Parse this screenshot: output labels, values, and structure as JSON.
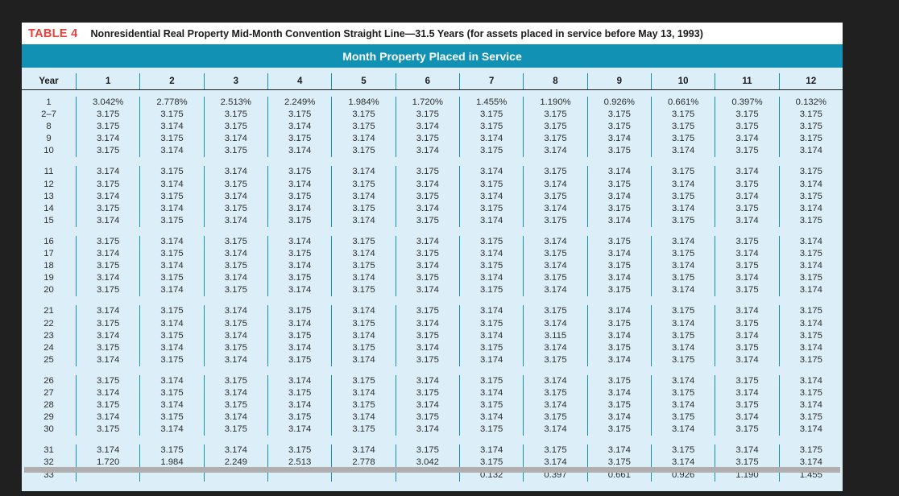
{
  "colors": {
    "label_red": "#e8403a",
    "band_teal": "#1192b4",
    "body_blue": "#dceef7",
    "page_background": "#202020"
  },
  "table": {
    "label": "TABLE 4",
    "title": "Nonresidential Real Property Mid-Month Convention Straight Line—31.5 Years (for assets placed in service before May 13, 1993)",
    "band_header": "Month Property Placed in Service",
    "year_header": "Year",
    "month_headers": [
      "1",
      "2",
      "3",
      "4",
      "5",
      "6",
      "7",
      "8",
      "9",
      "10",
      "11",
      "12"
    ],
    "groups": [
      {
        "rows": [
          {
            "year": "1",
            "values": [
              "3.042%",
              "2.778%",
              "2.513%",
              "2.249%",
              "1.984%",
              "1.720%",
              "1.455%",
              "1.190%",
              "0.926%",
              "0.661%",
              "0.397%",
              "0.132%"
            ]
          },
          {
            "year": "2–7",
            "values": [
              "3.175",
              "3.175",
              "3.175",
              "3.175",
              "3.175",
              "3.175",
              "3.175",
              "3.175",
              "3.175",
              "3.175",
              "3.175",
              "3.175"
            ]
          },
          {
            "year": "8",
            "values": [
              "3.175",
              "3.174",
              "3.175",
              "3.174",
              "3.175",
              "3.174",
              "3.175",
              "3.175",
              "3.175",
              "3.175",
              "3.175",
              "3.175"
            ]
          },
          {
            "year": "9",
            "values": [
              "3.174",
              "3.175",
              "3.174",
              "3.175",
              "3.174",
              "3.175",
              "3.174",
              "3.175",
              "3.174",
              "3.175",
              "3.174",
              "3.175"
            ]
          },
          {
            "year": "10",
            "values": [
              "3.175",
              "3.174",
              "3.175",
              "3.174",
              "3.175",
              "3.174",
              "3.175",
              "3.174",
              "3.175",
              "3.174",
              "3.175",
              "3.174"
            ]
          }
        ]
      },
      {
        "rows": [
          {
            "year": "11",
            "values": [
              "3.174",
              "3.175",
              "3.174",
              "3.175",
              "3.174",
              "3.175",
              "3.174",
              "3.175",
              "3.174",
              "3.175",
              "3.174",
              "3.175"
            ]
          },
          {
            "year": "12",
            "values": [
              "3.175",
              "3.174",
              "3.175",
              "3.174",
              "3.175",
              "3.174",
              "3.175",
              "3.174",
              "3.175",
              "3.174",
              "3.175",
              "3.174"
            ]
          },
          {
            "year": "13",
            "values": [
              "3.174",
              "3.175",
              "3.174",
              "3.175",
              "3.174",
              "3.175",
              "3.174",
              "3.175",
              "3.174",
              "3.175",
              "3.174",
              "3.175"
            ]
          },
          {
            "year": "14",
            "values": [
              "3.175",
              "3.174",
              "3.175",
              "3.174",
              "3.175",
              "3.174",
              "3.175",
              "3.174",
              "3.175",
              "3.174",
              "3.175",
              "3.174"
            ]
          },
          {
            "year": "15",
            "values": [
              "3.174",
              "3.175",
              "3.174",
              "3.175",
              "3.174",
              "3.175",
              "3.174",
              "3.175",
              "3.174",
              "3.175",
              "3.174",
              "3.175"
            ]
          }
        ]
      },
      {
        "rows": [
          {
            "year": "16",
            "values": [
              "3.175",
              "3.174",
              "3.175",
              "3.174",
              "3.175",
              "3.174",
              "3.175",
              "3.174",
              "3.175",
              "3.174",
              "3.175",
              "3.174"
            ]
          },
          {
            "year": "17",
            "values": [
              "3.174",
              "3.175",
              "3.174",
              "3.175",
              "3.174",
              "3.175",
              "3.174",
              "3.175",
              "3.174",
              "3.175",
              "3.174",
              "3.175"
            ]
          },
          {
            "year": "18",
            "values": [
              "3.175",
              "3.174",
              "3.175",
              "3.174",
              "3.175",
              "3.174",
              "3.175",
              "3.174",
              "3.175",
              "3.174",
              "3.175",
              "3.174"
            ]
          },
          {
            "year": "19",
            "values": [
              "3.174",
              "3.175",
              "3.174",
              "3.175",
              "3.174",
              "3.175",
              "3.174",
              "3.175",
              "3.174",
              "3.175",
              "3.174",
              "3.175"
            ]
          },
          {
            "year": "20",
            "values": [
              "3.175",
              "3.174",
              "3.175",
              "3.174",
              "3.175",
              "3.174",
              "3.175",
              "3.174",
              "3.175",
              "3.174",
              "3.175",
              "3.174"
            ]
          }
        ]
      },
      {
        "rows": [
          {
            "year": "21",
            "values": [
              "3.174",
              "3.175",
              "3.174",
              "3.175",
              "3.174",
              "3.175",
              "3.174",
              "3.175",
              "3.174",
              "3.175",
              "3.174",
              "3.175"
            ]
          },
          {
            "year": "22",
            "values": [
              "3.175",
              "3.174",
              "3.175",
              "3.174",
              "3.175",
              "3.174",
              "3.175",
              "3.174",
              "3.175",
              "3.174",
              "3.175",
              "3.174"
            ]
          },
          {
            "year": "23",
            "values": [
              "3.174",
              "3.175",
              "3.174",
              "3.175",
              "3.174",
              "3.175",
              "3.174",
              "3.115",
              "3.174",
              "3.175",
              "3.174",
              "3.175"
            ]
          },
          {
            "year": "24",
            "values": [
              "3.175",
              "3.174",
              "3.175",
              "3.174",
              "3.175",
              "3.174",
              "3.175",
              "3.174",
              "3.175",
              "3.174",
              "3.175",
              "3.174"
            ]
          },
          {
            "year": "25",
            "values": [
              "3.174",
              "3.175",
              "3.174",
              "3.175",
              "3.174",
              "3.175",
              "3.174",
              "3.175",
              "3.174",
              "3.175",
              "3.174",
              "3.175"
            ]
          }
        ]
      },
      {
        "rows": [
          {
            "year": "26",
            "values": [
              "3.175",
              "3.174",
              "3.175",
              "3.174",
              "3.175",
              "3.174",
              "3.175",
              "3.174",
              "3.175",
              "3.174",
              "3.175",
              "3.174"
            ]
          },
          {
            "year": "27",
            "values": [
              "3.174",
              "3.175",
              "3.174",
              "3.175",
              "3.174",
              "3.175",
              "3.174",
              "3.175",
              "3.174",
              "3.175",
              "3.174",
              "3.175"
            ]
          },
          {
            "year": "28",
            "values": [
              "3.175",
              "3.174",
              "3.175",
              "3.174",
              "3.175",
              "3.174",
              "3.175",
              "3.174",
              "3.175",
              "3.174",
              "3.175",
              "3.174"
            ]
          },
          {
            "year": "29",
            "values": [
              "3.174",
              "3.175",
              "3.174",
              "3.175",
              "3.174",
              "3.175",
              "3.174",
              "3.175",
              "3.174",
              "3.175",
              "3.174",
              "3.175"
            ]
          },
          {
            "year": "30",
            "values": [
              "3.175",
              "3.174",
              "3.175",
              "3.174",
              "3.175",
              "3.174",
              "3.175",
              "3.174",
              "3.175",
              "3.174",
              "3.175",
              "3.174"
            ]
          }
        ]
      },
      {
        "rows": [
          {
            "year": "31",
            "values": [
              "3.174",
              "3.175",
              "3.174",
              "3.175",
              "3.174",
              "3.175",
              "3.174",
              "3.175",
              "3.174",
              "3.175",
              "3.174",
              "3.175"
            ]
          },
          {
            "year": "32",
            "values": [
              "1.720",
              "1.984",
              "2.249",
              "2.513",
              "2.778",
              "3.042",
              "3.175",
              "3.174",
              "3.175",
              "3.174",
              "3.175",
              "3.174"
            ]
          },
          {
            "year": "33",
            "values": [
              "",
              "",
              "",
              "",
              "",
              "",
              "0.132",
              "0.397",
              "0.661",
              "0.926",
              "1.190",
              "1.455"
            ]
          }
        ]
      }
    ]
  }
}
